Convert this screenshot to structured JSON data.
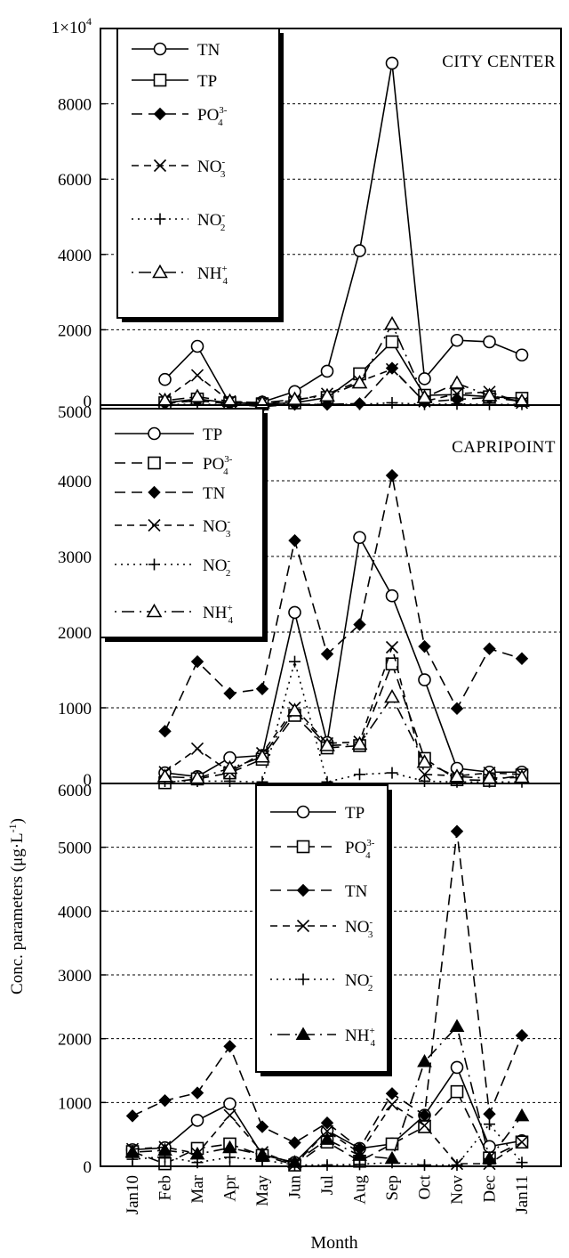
{
  "ylabel": "Conc. parameters (μg·L",
  "ylabel_sup": "-1",
  "ylabel_close": ")",
  "xlabel": "Month",
  "months": [
    "Jan10",
    "Feb",
    "Mar",
    "Apr",
    "May",
    "Jun",
    "Jul",
    "Aug",
    "Sep",
    "Oct",
    "Nov",
    "Dec",
    "Jan11"
  ],
  "chart_data": [
    {
      "type": "line",
      "title": "CITY CENTER",
      "ylim": [
        0,
        10000
      ],
      "yticks": [
        {
          "v": 0,
          "label": "0"
        },
        {
          "v": 2000,
          "label": "2000"
        },
        {
          "v": 4000,
          "label": "4000"
        },
        {
          "v": 6000,
          "label": "6000"
        },
        {
          "v": 8000,
          "label": "8000"
        }
      ],
      "top_tick": {
        "base": "1×10",
        "exp": "4"
      },
      "grid": true,
      "legend_position": "top-left",
      "series": [
        {
          "name": "TN",
          "marker": "circle",
          "dash": "solid",
          "x": [
            1,
            2,
            3,
            4,
            5,
            6,
            7,
            8,
            9,
            10,
            11,
            12
          ],
          "values": [
            680,
            1560,
            40,
            80,
            360,
            900,
            4100,
            9080,
            700,
            1720,
            1680,
            1330
          ]
        },
        {
          "name": "TP",
          "marker": "square",
          "dash": "solid",
          "x": [
            1,
            2,
            3,
            4,
            5,
            6,
            7,
            8,
            9,
            10,
            11,
            12
          ],
          "values": [
            60,
            160,
            60,
            30,
            60,
            200,
            830,
            1680,
            260,
            280,
            220,
            180
          ]
        },
        {
          "name": "PO",
          "sub": "4",
          "sup": "3-",
          "marker": "diamond",
          "dash": "longdash",
          "x": [
            1,
            2,
            3,
            4,
            5,
            6,
            7,
            8,
            9,
            10,
            11,
            12
          ],
          "values": [
            40,
            120,
            30,
            -40,
            20,
            20,
            40,
            980,
            80,
            150,
            200,
            100
          ]
        },
        {
          "name": "NO",
          "sub": "3",
          "sup": "-",
          "marker": "x",
          "dash": "dash",
          "x": [
            1,
            2,
            3,
            4,
            5,
            6,
            7,
            8,
            9,
            10,
            11,
            12
          ],
          "values": [
            160,
            790,
            100,
            50,
            120,
            300,
            630,
            950,
            100,
            300,
            350,
            60
          ]
        },
        {
          "name": "NO",
          "sub": "2",
          "sup": "-",
          "marker": "plus",
          "dash": "dot",
          "x": [
            1,
            2,
            3,
            4,
            5,
            6,
            7,
            8,
            9,
            10,
            11,
            12
          ],
          "values": [
            20,
            20,
            20,
            20,
            20,
            20,
            20,
            60,
            20,
            30,
            20,
            20
          ]
        },
        {
          "name": "NH",
          "sub": "4",
          "sup": "+",
          "marker": "triangle",
          "dash": "dotdash",
          "x": [
            1,
            2,
            3,
            4,
            5,
            6,
            7,
            8,
            9,
            10,
            11,
            12
          ],
          "values": [
            120,
            220,
            100,
            60,
            150,
            240,
            590,
            2150,
            200,
            580,
            250,
            100
          ]
        }
      ]
    },
    {
      "type": "line",
      "title": "CAPRIPOINT",
      "ylim": [
        0,
        5000
      ],
      "yticks": [
        {
          "v": 0,
          "label": "0"
        },
        {
          "v": 1000,
          "label": "1000"
        },
        {
          "v": 2000,
          "label": "2000"
        },
        {
          "v": 3000,
          "label": "3000"
        },
        {
          "v": 4000,
          "label": "4000"
        },
        {
          "v": 5000,
          "label": "5000"
        }
      ],
      "grid": true,
      "legend_position": "top-left",
      "series": [
        {
          "name": "TP",
          "marker": "circle",
          "dash": "solid",
          "x": [
            1,
            2,
            3,
            4,
            5,
            6,
            7,
            8,
            9,
            10,
            11,
            12
          ],
          "values": [
            140,
            90,
            340,
            370,
            2260,
            540,
            3250,
            2480,
            1370,
            200,
            150,
            150
          ]
        },
        {
          "name": "PO",
          "sub": "4",
          "sup": "3-",
          "marker": "square",
          "dash": "longdash",
          "x": [
            1,
            2,
            3,
            4,
            5,
            6,
            7,
            8,
            9,
            10,
            11,
            12
          ],
          "values": [
            10,
            60,
            140,
            320,
            900,
            470,
            500,
            1580,
            330,
            50,
            40,
            110
          ]
        },
        {
          "name": "TN",
          "marker": "diamond",
          "dash": "longdash",
          "x": [
            1,
            2,
            3,
            4,
            5,
            6,
            7,
            8,
            9,
            10,
            11,
            12
          ],
          "values": [
            690,
            1610,
            1190,
            1250,
            3210,
            1710,
            2100,
            4070,
            1810,
            990,
            1780,
            1650
          ]
        },
        {
          "name": "NO",
          "sub": "3",
          "sup": "-",
          "marker": "x",
          "dash": "dash",
          "x": [
            1,
            2,
            3,
            4,
            5,
            6,
            7,
            8,
            9,
            10,
            11,
            12
          ],
          "values": [
            150,
            460,
            150,
            400,
            1000,
            530,
            550,
            1800,
            120,
            100,
            140,
            120
          ]
        },
        {
          "name": "NO",
          "sub": "2",
          "sup": "-",
          "marker": "plus",
          "dash": "dot",
          "x": [
            1,
            2,
            3,
            4,
            5,
            6,
            7,
            8,
            9,
            10,
            11,
            12
          ],
          "values": [
            30,
            30,
            30,
            20,
            1610,
            20,
            120,
            140,
            30,
            20,
            20,
            20
          ]
        },
        {
          "name": "NH",
          "sub": "4",
          "sup": "+",
          "marker": "triangle",
          "dash": "dotdash",
          "x": [
            1,
            2,
            3,
            4,
            5,
            6,
            7,
            8,
            9,
            10,
            11,
            12
          ],
          "values": [
            90,
            70,
            200,
            350,
            960,
            500,
            520,
            1140,
            280,
            90,
            70,
            80
          ]
        }
      ]
    },
    {
      "type": "line",
      "ylim": [
        0,
        6000
      ],
      "yticks": [
        {
          "v": 0,
          "label": "0"
        },
        {
          "v": 1000,
          "label": "1000"
        },
        {
          "v": 2000,
          "label": "2000"
        },
        {
          "v": 3000,
          "label": "3000"
        },
        {
          "v": 4000,
          "label": "4000"
        },
        {
          "v": 5000,
          "label": "5000"
        },
        {
          "v": 6000,
          "label": "6000"
        }
      ],
      "grid": true,
      "legend_position": "top-center",
      "series": [
        {
          "name": "TP",
          "marker": "circle",
          "dash": "solid",
          "x": [
            0,
            1,
            2,
            3,
            4,
            5,
            6,
            7,
            8,
            9,
            10,
            11,
            12
          ],
          "values": [
            260,
            290,
            720,
            980,
            180,
            60,
            560,
            280,
            350,
            800,
            1550,
            310,
            400
          ]
        },
        {
          "name": "PO",
          "sub": "4",
          "sup": "3-",
          "marker": "square",
          "dash": "longdash",
          "x": [
            0,
            1,
            2,
            3,
            4,
            5,
            6,
            7,
            8,
            9,
            10,
            11,
            12
          ],
          "values": [
            230,
            40,
            280,
            350,
            170,
            20,
            380,
            80,
            350,
            620,
            1170,
            130,
            380
          ]
        },
        {
          "name": "TN",
          "marker": "diamond",
          "dash": "longdash",
          "x": [
            0,
            1,
            2,
            3,
            4,
            5,
            6,
            7,
            8,
            9,
            10,
            11,
            12
          ],
          "values": [
            790,
            1030,
            1150,
            1880,
            620,
            370,
            680,
            280,
            1140,
            800,
            5250,
            820,
            2050
          ]
        },
        {
          "name": "NO",
          "sub": "3",
          "sup": "-",
          "marker": "x",
          "dash": "dash",
          "x": [
            0,
            1,
            2,
            3,
            4,
            5,
            6,
            7,
            8,
            9,
            10,
            11,
            12
          ],
          "values": [
            270,
            300,
            200,
            800,
            220,
            30,
            550,
            210,
            970,
            640,
            40,
            40,
            380
          ]
        },
        {
          "name": "NO",
          "sub": "2",
          "sup": "-",
          "marker": "plus",
          "dash": "dot",
          "x": [
            0,
            1,
            2,
            3,
            4,
            5,
            6,
            7,
            8,
            9,
            10,
            11,
            12
          ],
          "values": [
            110,
            150,
            60,
            140,
            100,
            20,
            20,
            30,
            60,
            20,
            20,
            660,
            60
          ]
        },
        {
          "name": "NH",
          "sub": "4",
          "sup": "+",
          "marker": "filled-triangle",
          "dash": "dotdash",
          "x": [
            0,
            1,
            2,
            3,
            4,
            5,
            6,
            7,
            8,
            9,
            10,
            11,
            12
          ],
          "values": [
            220,
            250,
            190,
            290,
            180,
            60,
            420,
            170,
            120,
            1640,
            2190,
            120,
            790
          ]
        }
      ]
    }
  ]
}
